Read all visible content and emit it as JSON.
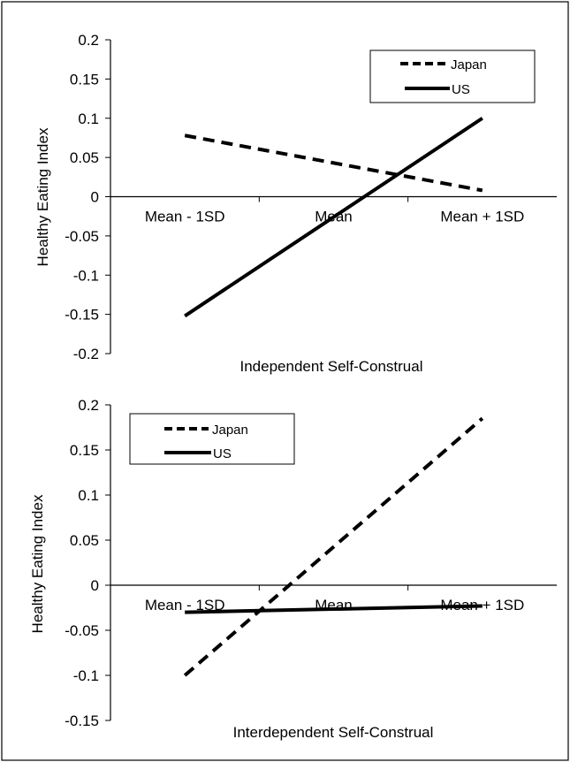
{
  "chart_data": [
    {
      "type": "line",
      "categories": [
        "Mean - 1SD",
        "Mean",
        "Mean + 1SD"
      ],
      "xlabel": "Independent Self-Construal",
      "ylabel": "Healthy Eating Index",
      "ylim": [
        -0.2,
        0.2
      ],
      "yticks": [
        "0.2",
        "0.15",
        "0.1",
        "0.05",
        "0",
        "-0.05",
        "-0.1",
        "-0.15",
        "-0.2"
      ],
      "legend_position": "top-right",
      "series": [
        {
          "name": "Japan",
          "style": "dashed",
          "color": "#000000",
          "x": [
            0,
            2
          ],
          "y": [
            0.078,
            0.008
          ]
        },
        {
          "name": "US",
          "style": "solid",
          "color": "#000000",
          "x": [
            0,
            2
          ],
          "y": [
            -0.152,
            0.1
          ]
        }
      ]
    },
    {
      "type": "line",
      "categories": [
        "Mean - 1SD",
        "Mean",
        "Mean + 1SD"
      ],
      "xlabel": "Interdependent Self-Construal",
      "ylabel": "Healthy Eating Index",
      "ylim": [
        -0.15,
        0.2
      ],
      "yticks": [
        "0.2",
        "0.15",
        "0.1",
        "0.05",
        "0",
        "-0.05",
        "-0.1",
        "-0.15"
      ],
      "legend_position": "top-left",
      "series": [
        {
          "name": "Japan",
          "style": "dashed",
          "color": "#000000",
          "x": [
            0,
            2
          ],
          "y": [
            -0.1,
            0.185
          ]
        },
        {
          "name": "US",
          "style": "solid",
          "color": "#000000",
          "x": [
            0,
            2
          ],
          "y": [
            -0.03,
            -0.023
          ]
        }
      ]
    }
  ]
}
